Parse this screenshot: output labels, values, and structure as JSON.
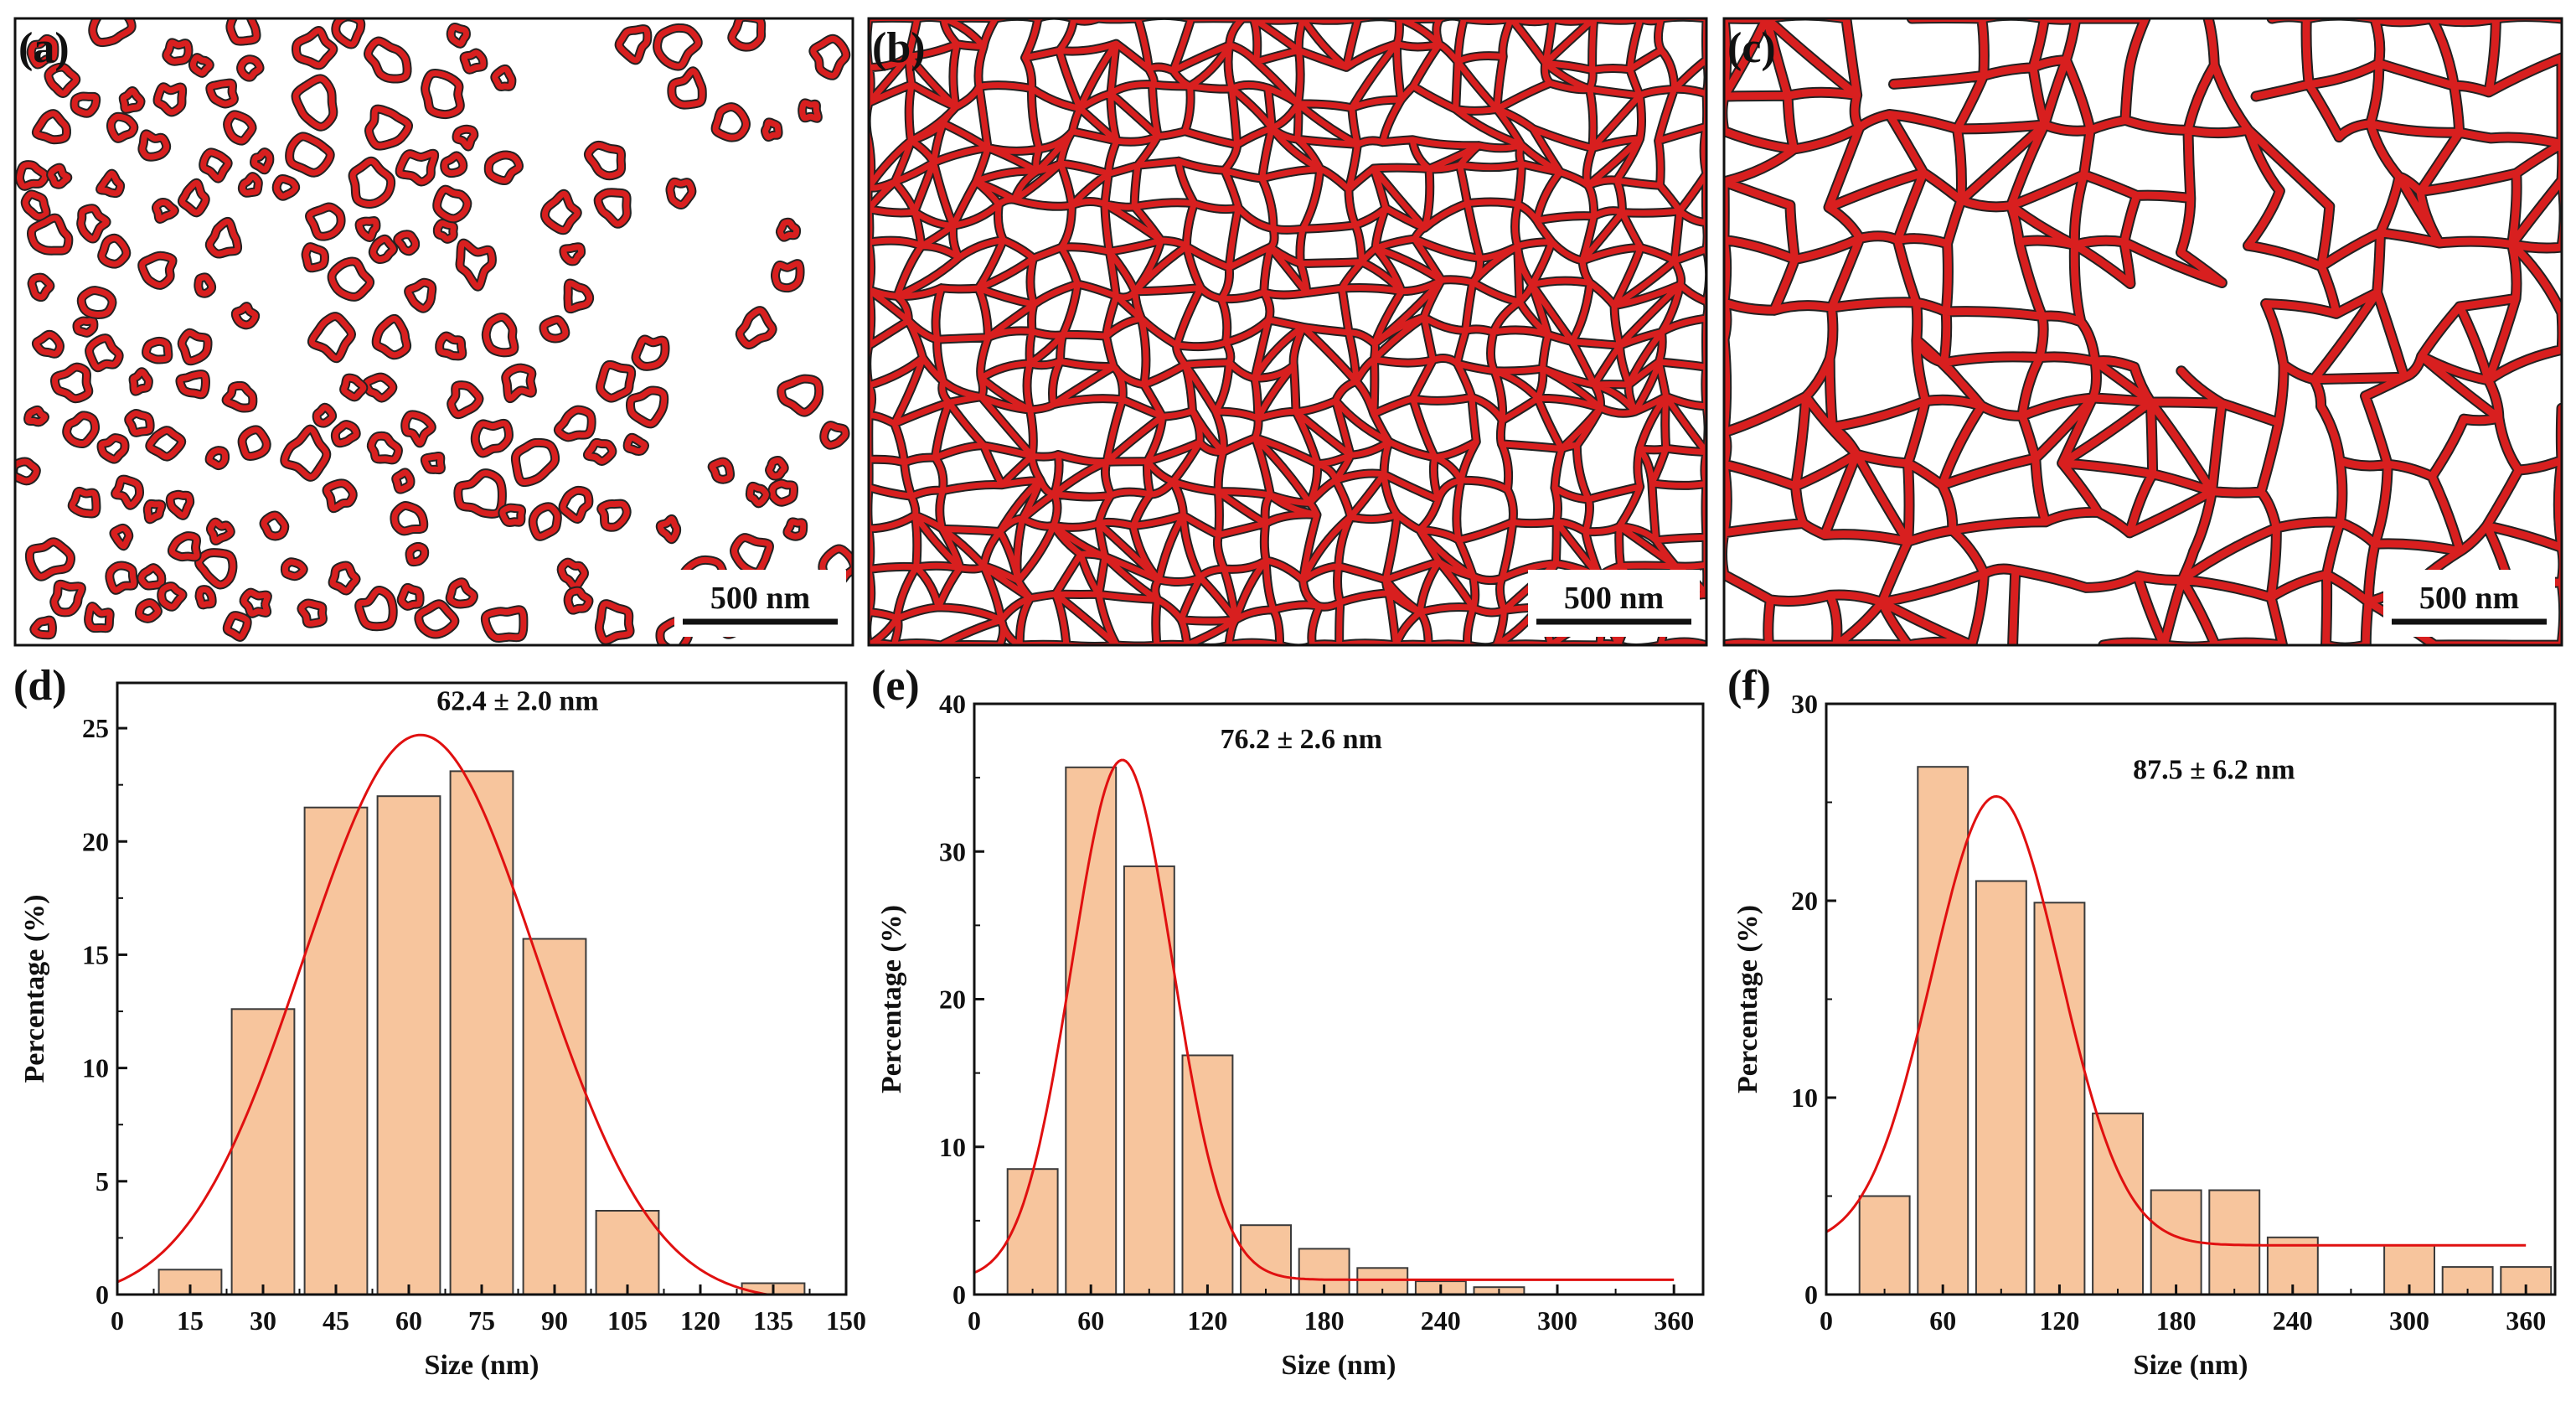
{
  "colors": {
    "network": "#d81f1f",
    "network_core": "#222222",
    "bar_fill": "#f7c59d",
    "bar_stroke": "#3a3a3a",
    "fit_line": "#e01010",
    "axis": "#111111"
  },
  "images": [
    {
      "label": "(a)",
      "scale_bar": "500 nm",
      "pattern": "isolated-rings"
    },
    {
      "label": "(b)",
      "scale_bar": "500 nm",
      "pattern": "dense-network"
    },
    {
      "label": "(c)",
      "scale_bar": "500 nm",
      "pattern": "coarse-network"
    }
  ],
  "chart_data": [
    {
      "type": "bar",
      "panel": "(d)",
      "title": "",
      "annotation": "62.4 ± 2.0 nm",
      "xlabel": "Size (nm)",
      "ylabel": "Percentage (%)",
      "xlim": [
        0,
        150
      ],
      "ylim": [
        0,
        27
      ],
      "xticks": [
        0,
        15,
        30,
        45,
        60,
        75,
        90,
        105,
        120,
        135,
        150
      ],
      "yticks": [
        0,
        5,
        10,
        15,
        20,
        25
      ],
      "bin_width": 15,
      "bins": [
        {
          "center": 15,
          "value": 1.1
        },
        {
          "center": 30,
          "value": 12.6
        },
        {
          "center": 45,
          "value": 21.5
        },
        {
          "center": 60,
          "value": 22.0
        },
        {
          "center": 75,
          "value": 23.1
        },
        {
          "center": 90,
          "value": 15.7
        },
        {
          "center": 105,
          "value": 3.7
        },
        {
          "center": 135,
          "value": 0.5
        }
      ],
      "fit": {
        "model": "gaussian",
        "center": 62.4,
        "sigma": 24,
        "amplitude": 25.0,
        "baseline": -0.3
      }
    },
    {
      "type": "bar",
      "panel": "(e)",
      "title": "",
      "annotation": "76.2 ± 2.6 nm",
      "xlabel": "Size (nm)",
      "ylabel": "Percentage (%)",
      "xlim": [
        0,
        375
      ],
      "ylim": [
        0,
        40
      ],
      "xticks": [
        0,
        60,
        120,
        180,
        240,
        300,
        360
      ],
      "yticks": [
        0,
        10,
        20,
        30,
        40
      ],
      "bin_width": 30,
      "bins": [
        {
          "center": 30,
          "value": 8.5
        },
        {
          "center": 60,
          "value": 35.7
        },
        {
          "center": 90,
          "value": 29.0
        },
        {
          "center": 120,
          "value": 16.2
        },
        {
          "center": 150,
          "value": 4.7
        },
        {
          "center": 180,
          "value": 3.1
        },
        {
          "center": 210,
          "value": 1.8
        },
        {
          "center": 240,
          "value": 0.9
        },
        {
          "center": 270,
          "value": 0.5
        }
      ],
      "fit": {
        "model": "gaussian",
        "center": 76.2,
        "sigma": 26,
        "amplitude": 35.2,
        "baseline": 1.0
      }
    },
    {
      "type": "bar",
      "panel": "(f)",
      "title": "",
      "annotation": "87.5 ± 6.2 nm",
      "xlabel": "Size (nm)",
      "ylabel": "Percentage (%)",
      "xlim": [
        0,
        375
      ],
      "ylim": [
        0,
        30
      ],
      "xticks": [
        0,
        60,
        120,
        180,
        240,
        300,
        360
      ],
      "yticks": [
        0,
        10,
        20,
        30
      ],
      "bin_width": 30,
      "bins": [
        {
          "center": 30,
          "value": 5.0
        },
        {
          "center": 60,
          "value": 26.8
        },
        {
          "center": 90,
          "value": 21.0
        },
        {
          "center": 120,
          "value": 19.9
        },
        {
          "center": 150,
          "value": 9.2
        },
        {
          "center": 180,
          "value": 5.3
        },
        {
          "center": 210,
          "value": 5.3
        },
        {
          "center": 240,
          "value": 2.9
        },
        {
          "center": 300,
          "value": 2.5
        },
        {
          "center": 330,
          "value": 1.4
        },
        {
          "center": 360,
          "value": 1.4
        }
      ],
      "fit": {
        "model": "gaussian",
        "center": 87.5,
        "sigma": 33,
        "amplitude": 22.8,
        "baseline": 2.5
      }
    }
  ]
}
